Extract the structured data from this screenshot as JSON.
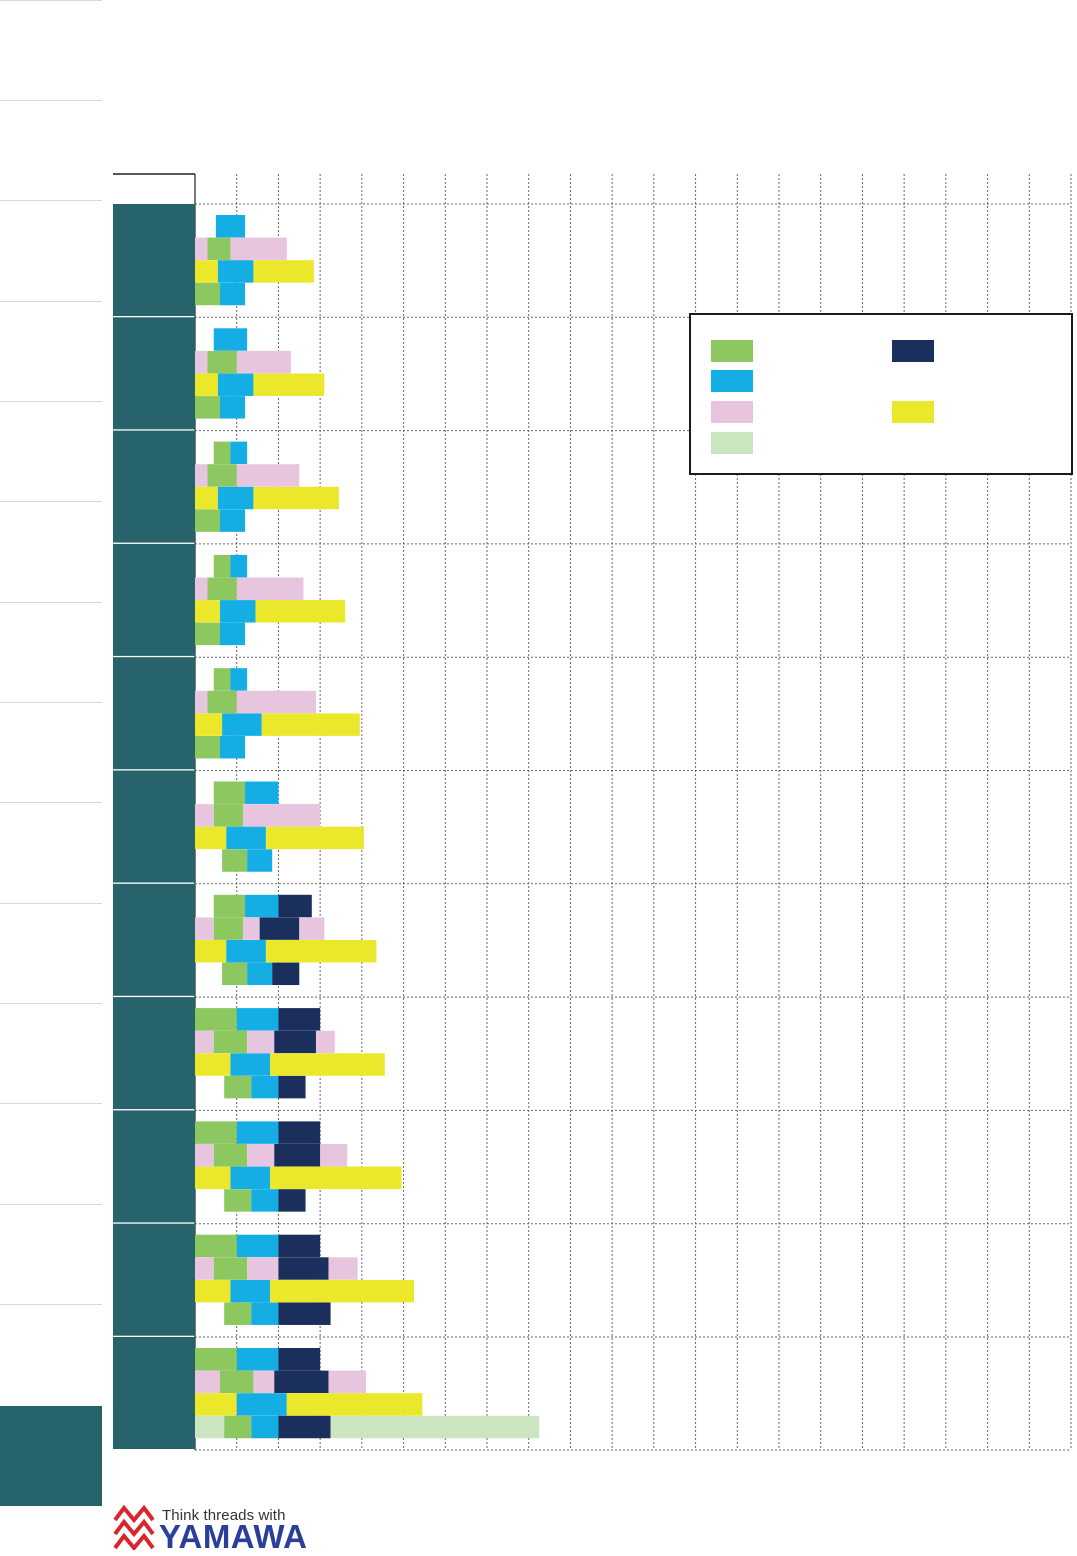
{
  "page": {
    "footer": {
      "tagline": "Think threads with",
      "brand": "YAMAWA",
      "logo_icon": "yamawa-logo-icon"
    },
    "colors": {
      "row_label_bg": "#26636a",
      "grid": "#666666",
      "green": "#8cc760",
      "blue": "#14aee5",
      "pink": "#e8c5df",
      "yellow": "#ebe72a",
      "light_green": "#cbe5c1",
      "navy": "#1b2f5c"
    }
  },
  "chart_data": {
    "type": "bar",
    "orientation": "horizontal",
    "stacked": true,
    "title": "",
    "xlabel": "",
    "ylabel": "",
    "xlim": [
      0,
      21
    ],
    "x_tick_step": 1,
    "grid": true,
    "legend_position": "top-right",
    "legend": [
      {
        "key": "green",
        "label": ""
      },
      {
        "key": "navy",
        "label": ""
      },
      {
        "key": "blue",
        "label": ""
      },
      {
        "key": "pink",
        "label": ""
      },
      {
        "key": "yellow",
        "label": ""
      },
      {
        "key": "light_green",
        "label": ""
      }
    ],
    "groups": [
      {
        "category": "",
        "rows": [
          [
            [
              "blue",
              0.5,
              1.2
            ]
          ],
          [
            [
              "pink",
              0,
              0.3
            ],
            [
              "green",
              0.3,
              0.85
            ],
            [
              "pink",
              0.85,
              2.2
            ]
          ],
          [
            [
              "yellow",
              0,
              0.55
            ],
            [
              "blue",
              0.55,
              1.4
            ],
            [
              "yellow",
              1.4,
              2.85
            ]
          ],
          [
            [
              "green",
              0,
              0.6
            ],
            [
              "blue",
              0.6,
              1.2
            ]
          ]
        ]
      },
      {
        "category": "",
        "rows": [
          [
            [
              "blue",
              0.45,
              1.25
            ]
          ],
          [
            [
              "pink",
              0,
              0.3
            ],
            [
              "green",
              0.3,
              1.0
            ],
            [
              "pink",
              1.0,
              2.3
            ]
          ],
          [
            [
              "yellow",
              0,
              0.55
            ],
            [
              "blue",
              0.55,
              1.4
            ],
            [
              "yellow",
              1.4,
              3.1
            ]
          ],
          [
            [
              "green",
              0,
              0.6
            ],
            [
              "blue",
              0.6,
              1.2
            ]
          ]
        ]
      },
      {
        "category": "",
        "rows": [
          [
            [
              "green",
              0.45,
              0.85
            ],
            [
              "blue",
              0.85,
              1.25
            ]
          ],
          [
            [
              "pink",
              0,
              0.3
            ],
            [
              "green",
              0.3,
              1.0
            ],
            [
              "pink",
              1.0,
              2.5
            ]
          ],
          [
            [
              "yellow",
              0,
              0.55
            ],
            [
              "blue",
              0.55,
              1.4
            ],
            [
              "yellow",
              1.4,
              3.45
            ]
          ],
          [
            [
              "green",
              0,
              0.6
            ],
            [
              "blue",
              0.6,
              1.2
            ]
          ]
        ]
      },
      {
        "category": "",
        "rows": [
          [
            [
              "green",
              0.45,
              0.85
            ],
            [
              "blue",
              0.85,
              1.25
            ]
          ],
          [
            [
              "pink",
              0,
              0.3
            ],
            [
              "green",
              0.3,
              1.0
            ],
            [
              "pink",
              1.0,
              2.6
            ]
          ],
          [
            [
              "yellow",
              0,
              0.6
            ],
            [
              "blue",
              0.6,
              1.45
            ],
            [
              "yellow",
              1.45,
              3.6
            ]
          ],
          [
            [
              "green",
              0,
              0.6
            ],
            [
              "blue",
              0.6,
              1.2
            ]
          ]
        ]
      },
      {
        "category": "",
        "rows": [
          [
            [
              "green",
              0.45,
              0.85
            ],
            [
              "blue",
              0.85,
              1.25
            ]
          ],
          [
            [
              "pink",
              0,
              0.3
            ],
            [
              "green",
              0.3,
              1.0
            ],
            [
              "pink",
              1.0,
              2.9
            ]
          ],
          [
            [
              "yellow",
              0,
              0.65
            ],
            [
              "blue",
              0.65,
              1.6
            ],
            [
              "yellow",
              1.6,
              3.95
            ]
          ],
          [
            [
              "green",
              0,
              0.6
            ],
            [
              "blue",
              0.6,
              1.2
            ]
          ]
        ]
      },
      {
        "category": "",
        "rows": [
          [
            [
              "green",
              0.45,
              1.2
            ],
            [
              "blue",
              1.2,
              2.0
            ]
          ],
          [
            [
              "pink",
              0,
              0.45
            ],
            [
              "green",
              0.45,
              1.15
            ],
            [
              "pink",
              1.15,
              3.0
            ]
          ],
          [
            [
              "yellow",
              0,
              0.75
            ],
            [
              "blue",
              0.75,
              1.7
            ],
            [
              "yellow",
              1.7,
              4.05
            ]
          ],
          [
            [
              "green",
              0.65,
              1.25
            ],
            [
              "blue",
              1.25,
              1.85
            ]
          ]
        ]
      },
      {
        "category": "",
        "rows": [
          [
            [
              "green",
              0.45,
              1.2
            ],
            [
              "blue",
              1.2,
              2.0
            ],
            [
              "navy",
              2.0,
              2.8
            ]
          ],
          [
            [
              "pink",
              0,
              0.45
            ],
            [
              "green",
              0.45,
              1.15
            ],
            [
              "pink",
              1.15,
              1.55
            ],
            [
              "navy",
              1.55,
              2.5
            ],
            [
              "pink",
              2.5,
              3.1
            ]
          ],
          [
            [
              "yellow",
              0,
              0.75
            ],
            [
              "blue",
              0.75,
              1.7
            ],
            [
              "yellow",
              1.7,
              4.35
            ]
          ],
          [
            [
              "green",
              0.65,
              1.25
            ],
            [
              "blue",
              1.25,
              1.85
            ],
            [
              "navy",
              1.85,
              2.5
            ]
          ]
        ]
      },
      {
        "category": "",
        "rows": [
          [
            [
              "green",
              0,
              1.0
            ],
            [
              "blue",
              1.0,
              2.0
            ],
            [
              "navy",
              2.0,
              3.0
            ]
          ],
          [
            [
              "pink",
              0,
              0.45
            ],
            [
              "green",
              0.45,
              1.25
            ],
            [
              "pink",
              1.25,
              1.9
            ],
            [
              "navy",
              1.9,
              2.9
            ],
            [
              "pink",
              2.9,
              3.35
            ]
          ],
          [
            [
              "yellow",
              0,
              0.85
            ],
            [
              "blue",
              0.85,
              1.8
            ],
            [
              "yellow",
              1.8,
              4.55
            ]
          ],
          [
            [
              "green",
              0.7,
              1.35
            ],
            [
              "blue",
              1.35,
              2.0
            ],
            [
              "navy",
              2.0,
              2.65
            ]
          ]
        ]
      },
      {
        "category": "",
        "rows": [
          [
            [
              "green",
              0,
              1.0
            ],
            [
              "blue",
              1.0,
              2.0
            ],
            [
              "navy",
              2.0,
              3.0
            ]
          ],
          [
            [
              "pink",
              0,
              0.45
            ],
            [
              "green",
              0.45,
              1.25
            ],
            [
              "pink",
              1.25,
              1.9
            ],
            [
              "navy",
              1.9,
              3.0
            ],
            [
              "pink",
              3.0,
              3.65
            ]
          ],
          [
            [
              "yellow",
              0,
              0.85
            ],
            [
              "blue",
              0.85,
              1.8
            ],
            [
              "yellow",
              1.8,
              4.95
            ]
          ],
          [
            [
              "green",
              0.7,
              1.35
            ],
            [
              "blue",
              1.35,
              2.0
            ],
            [
              "navy",
              2.0,
              2.65
            ]
          ]
        ]
      },
      {
        "category": "",
        "rows": [
          [
            [
              "green",
              0,
              1.0
            ],
            [
              "blue",
              1.0,
              2.0
            ],
            [
              "navy",
              2.0,
              3.0
            ]
          ],
          [
            [
              "pink",
              0,
              0.45
            ],
            [
              "green",
              0.45,
              1.25
            ],
            [
              "pink",
              1.25,
              2.0
            ],
            [
              "navy",
              2.0,
              3.2
            ],
            [
              "pink",
              3.2,
              3.9
            ]
          ],
          [
            [
              "yellow",
              0,
              0.85
            ],
            [
              "blue",
              0.85,
              1.8
            ],
            [
              "yellow",
              1.8,
              5.25
            ]
          ],
          [
            [
              "green",
              0.7,
              1.35
            ],
            [
              "blue",
              1.35,
              2.0
            ],
            [
              "navy",
              2.0,
              3.25
            ]
          ]
        ]
      },
      {
        "category": "",
        "rows": [
          [
            [
              "green",
              0,
              1.0
            ],
            [
              "blue",
              1.0,
              2.0
            ],
            [
              "navy",
              2.0,
              3.0
            ]
          ],
          [
            [
              "pink",
              0,
              0.6
            ],
            [
              "green",
              0.6,
              1.4
            ],
            [
              "pink",
              1.4,
              1.9
            ],
            [
              "navy",
              1.9,
              3.2
            ],
            [
              "pink",
              3.2,
              4.1
            ]
          ],
          [
            [
              "yellow",
              0,
              1.0
            ],
            [
              "blue",
              1.0,
              2.2
            ],
            [
              "yellow",
              2.2,
              5.45
            ]
          ],
          [
            [
              "light_green",
              0,
              0.7
            ],
            [
              "green",
              0.7,
              1.35
            ],
            [
              "blue",
              1.35,
              2.0
            ],
            [
              "navy",
              2.0,
              3.25
            ],
            [
              "light_green",
              3.25,
              8.25
            ]
          ]
        ]
      }
    ]
  }
}
